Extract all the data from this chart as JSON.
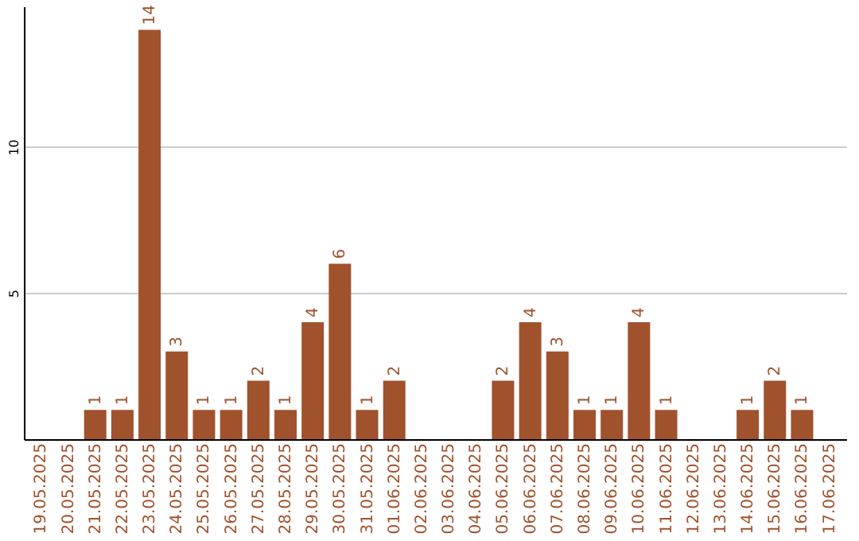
{
  "chart_data": {
    "type": "bar",
    "categories": [
      "19.05.2025",
      "20.05.2025",
      "21.05.2025",
      "22.05.2025",
      "23.05.2025",
      "24.05.2025",
      "25.05.2025",
      "26.05.2025",
      "27.05.2025",
      "28.05.2025",
      "29.05.2025",
      "30.05.2025",
      "31.05.2025",
      "01.06.2025",
      "02.06.2025",
      "03.06.2025",
      "04.06.2025",
      "05.06.2025",
      "06.06.2025",
      "07.06.2025",
      "08.06.2025",
      "09.06.2025",
      "10.06.2025",
      "11.06.2025",
      "12.06.2025",
      "13.06.2025",
      "14.06.2025",
      "15.06.2025",
      "16.06.2025",
      "17.06.2025"
    ],
    "values": [
      null,
      null,
      1,
      1,
      14,
      3,
      1,
      1,
      2,
      1,
      4,
      6,
      1,
      2,
      null,
      null,
      null,
      2,
      4,
      3,
      1,
      1,
      4,
      1,
      null,
      null,
      1,
      2,
      1,
      null
    ],
    "color": "#a0522d",
    "ylim": [
      0,
      14.8
    ],
    "yticks": [
      5,
      10
    ],
    "grid": "y",
    "data_labels": true
  }
}
